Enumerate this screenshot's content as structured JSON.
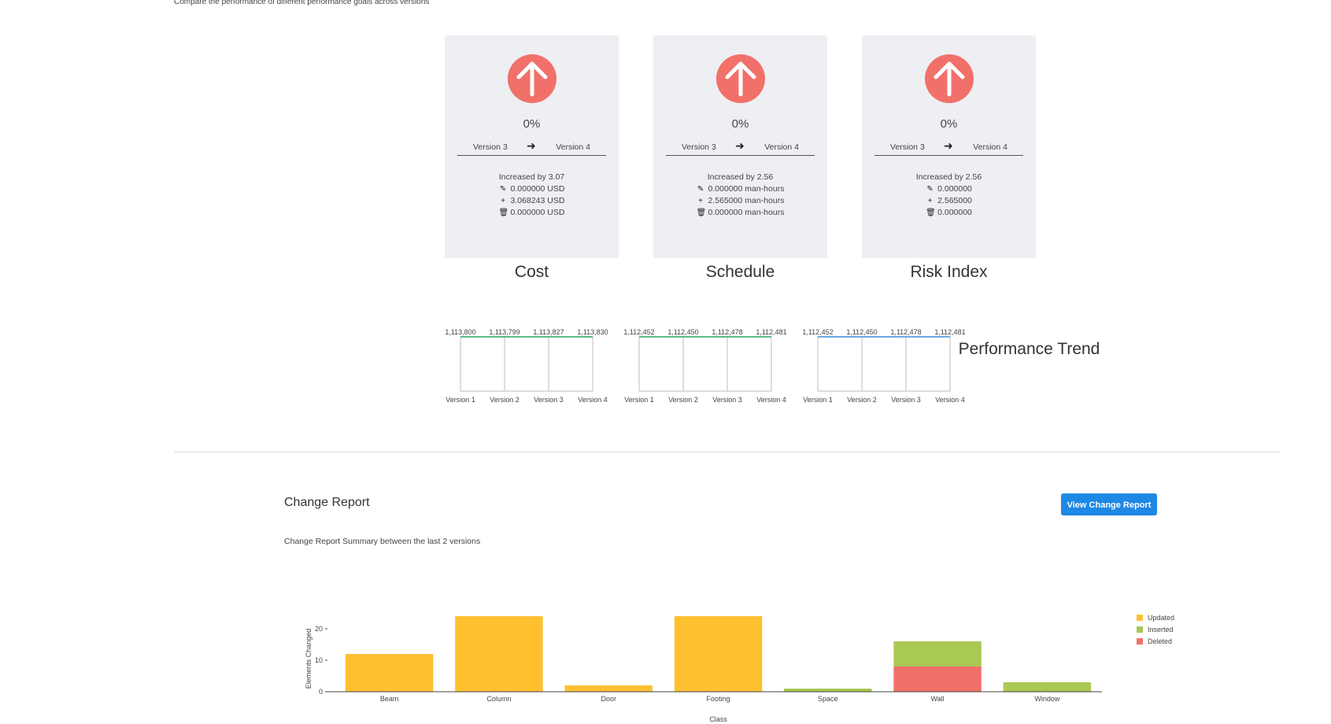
{
  "header": {
    "subtitle": "Compare the performance of different performance goals across versions"
  },
  "colors": {
    "arrow": "#f2706a",
    "updated": "#ffc030",
    "inserted": "#a9c854",
    "deleted": "#f2706a",
    "button": "#1e88e5",
    "trend_green": "#26a65b",
    "trend_blue": "#3b8fd9"
  },
  "cards": [
    {
      "title": "Cost",
      "percent": "0%",
      "from": "Version 3",
      "to": "Version 4",
      "summary": "Increased by 3.07",
      "updated": "0.000000 USD",
      "inserted": "3.068243 USD",
      "deleted": "0.000000 USD"
    },
    {
      "title": "Schedule",
      "percent": "0%",
      "from": "Version 3",
      "to": "Version 4",
      "summary": "Increased by 2.56",
      "updated": "0.000000 man-hours",
      "inserted": "2.565000 man-hours",
      "deleted": "0.000000 man-hours"
    },
    {
      "title": "Risk Index",
      "percent": "0%",
      "from": "Version 3",
      "to": "Version 4",
      "summary": "Increased by 2.56",
      "updated": "0.000000",
      "inserted": "2.565000",
      "deleted": "0.000000"
    }
  ],
  "trends": [
    {
      "versions": [
        "Version 1",
        "Version 2",
        "Version 3",
        "Version 4"
      ],
      "values": [
        "1,113,800",
        "1,113,799",
        "1,113,827",
        "1,113,830"
      ],
      "color": "#26a65b"
    },
    {
      "versions": [
        "Version 1",
        "Version 2",
        "Version 3",
        "Version 4"
      ],
      "values": [
        "1,112,452",
        "1,112,450",
        "1,112,478",
        "1,112,481"
      ],
      "color": "#26a65b"
    },
    {
      "versions": [
        "Version 1",
        "Version 2",
        "Version 3",
        "Version 4"
      ],
      "values": [
        "1,112,452",
        "1,112,450",
        "1,112,478",
        "1,112,481"
      ],
      "color": "#3b8fd9"
    }
  ],
  "performance_trend_label": "Performance Trend",
  "change_report": {
    "title": "Change Report",
    "button_label": "View Change Report",
    "subtitle": "Change Report Summary between the last 2 versions"
  },
  "chart_data": {
    "type": "bar",
    "stacked": true,
    "categories": [
      "Beam",
      "Column",
      "Door",
      "Footing",
      "Space",
      "Wall",
      "Window"
    ],
    "series": [
      {
        "name": "Updated",
        "values": [
          12,
          24,
          2,
          24,
          0,
          0,
          0
        ]
      },
      {
        "name": "Inserted",
        "values": [
          0,
          0,
          0,
          0,
          1,
          8,
          3
        ]
      },
      {
        "name": "Deleted",
        "values": [
          0,
          0,
          0,
          0,
          0,
          8,
          0
        ]
      }
    ],
    "xlabel": "Class",
    "ylabel": "Elements Changed",
    "yticks": [
      0,
      10,
      20
    ],
    "ylim": [
      0,
      25
    ],
    "legend": "right",
    "grid": false
  }
}
